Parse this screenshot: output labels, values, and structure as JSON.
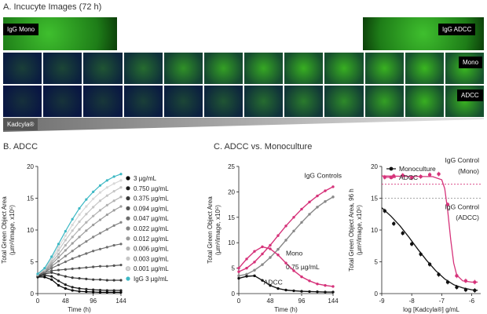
{
  "section_a": {
    "title": "A. Incucyte Images (72 h)",
    "row_labels": {
      "igg_mono": "IgG Mono",
      "igg_adcc": "IgG ADCC",
      "mono": "Mono",
      "adcc": "ADCC"
    },
    "gradient_label": "Kadcyla®",
    "tile_count": 12,
    "mono_intensity": [
      0.15,
      0.2,
      0.3,
      0.45,
      0.7,
      0.8,
      0.85,
      0.9,
      0.9,
      0.92,
      0.95,
      0.95
    ],
    "adcc_intensity": [
      0.05,
      0.07,
      0.1,
      0.15,
      0.2,
      0.3,
      0.45,
      0.55,
      0.65,
      0.8,
      0.9,
      0.92
    ]
  },
  "colors": {
    "teal": "#3db8c4",
    "magenta": "#d6337a",
    "green": "#3fb72e",
    "black": "#111111",
    "gray": "#888888"
  },
  "chart_data": [
    {
      "id": "B",
      "type": "line",
      "title": "B. ADCC",
      "xlabel": "Time (h)",
      "ylabel": "Total Green Object Area",
      "ylabel2": "(µm²/image, x10⁵)",
      "xlim": [
        0,
        144
      ],
      "ylim": [
        0,
        20
      ],
      "xticks": [
        0,
        48,
        96,
        144
      ],
      "yticks": [
        0,
        5,
        10,
        15,
        20
      ],
      "x": [
        0,
        12,
        24,
        36,
        48,
        60,
        72,
        84,
        96,
        108,
        120,
        132,
        144
      ],
      "series": [
        {
          "name": "3 µg/mL",
          "color": "#000000",
          "values": [
            2.6,
            2.6,
            2.2,
            1.3,
            0.8,
            0.5,
            0.35,
            0.3,
            0.25,
            0.2,
            0.2,
            0.2,
            0.2
          ]
        },
        {
          "name": "0.750 µg/mL",
          "color": "#1e1e1e",
          "values": [
            2.7,
            2.9,
            2.7,
            2.0,
            1.4,
            1.0,
            0.8,
            0.7,
            0.6,
            0.55,
            0.5,
            0.5,
            0.5
          ]
        },
        {
          "name": "0.375 µg/mL",
          "color": "#3a3a3a",
          "values": [
            2.8,
            3.1,
            3.3,
            3.0,
            2.7,
            2.5,
            2.4,
            2.3,
            2.2,
            2.2,
            2.1,
            2.1,
            2.1
          ]
        },
        {
          "name": "0.094 µg/mL",
          "color": "#555555",
          "values": [
            2.9,
            3.3,
            3.6,
            3.7,
            3.8,
            3.9,
            4.0,
            4.1,
            4.2,
            4.3,
            4.3,
            4.4,
            4.5
          ]
        },
        {
          "name": "0.047 µg/mL",
          "color": "#6e6e6e",
          "values": [
            3.0,
            3.4,
            4.0,
            4.5,
            5.0,
            5.5,
            5.9,
            6.3,
            6.7,
            7.0,
            7.3,
            7.6,
            7.8
          ]
        },
        {
          "name": "0.022 µg/mL",
          "color": "#858585",
          "values": [
            3.0,
            3.5,
            4.3,
            5.1,
            5.9,
            6.7,
            7.5,
            8.2,
            8.9,
            9.5,
            10.1,
            10.7,
            11.2
          ]
        },
        {
          "name": "0.012 µg/mL",
          "color": "#9c9c9c",
          "values": [
            3.0,
            3.6,
            4.6,
            5.7,
            6.8,
            7.9,
            8.9,
            9.9,
            10.8,
            11.6,
            12.4,
            13.1,
            13.7
          ]
        },
        {
          "name": "0.006 µg/mL",
          "color": "#b2b2b2",
          "values": [
            3.0,
            3.7,
            4.9,
            6.2,
            7.6,
            8.9,
            10.1,
            11.2,
            12.2,
            13.1,
            13.9,
            14.6,
            15.2
          ]
        },
        {
          "name": "0.003 µg/mL",
          "color": "#c6c6c6",
          "values": [
            3.0,
            3.8,
            5.2,
            6.8,
            8.4,
            9.9,
            11.3,
            12.5,
            13.6,
            14.6,
            15.4,
            16.1,
            16.7
          ]
        },
        {
          "name": "0.001 µg/mL",
          "color": "#d8d8d8",
          "values": [
            3.0,
            3.9,
            5.5,
            7.3,
            9.1,
            10.8,
            12.4,
            13.7,
            14.9,
            15.9,
            16.7,
            17.3,
            17.8
          ]
        },
        {
          "name": "IgG 3 µg/mL",
          "color": "#3db8c4",
          "values": [
            3.1,
            4.0,
            5.8,
            7.8,
            9.8,
            11.7,
            13.4,
            14.8,
            16.0,
            17.0,
            17.8,
            18.4,
            18.8
          ]
        }
      ]
    },
    {
      "id": "C1",
      "type": "line",
      "title": "C. ADCC vs. Monoculture",
      "xlabel": "Time (h)",
      "ylabel": "Total Green Object Area",
      "ylabel2": "(µm²/image, x10⁵)",
      "xlim": [
        0,
        144
      ],
      "ylim": [
        0,
        25
      ],
      "xticks": [
        0,
        48,
        96,
        144
      ],
      "yticks": [
        0,
        5,
        10,
        15,
        20,
        25
      ],
      "x": [
        0,
        12,
        24,
        36,
        48,
        60,
        72,
        84,
        96,
        108,
        120,
        132,
        144
      ],
      "series": [
        {
          "name": "IgG Mono",
          "color": "#d6337a",
          "values": [
            4.3,
            5.0,
            6.2,
            7.8,
            9.5,
            11.4,
            13.3,
            15.0,
            16.6,
            18.0,
            19.2,
            20.2,
            21.0
          ]
        },
        {
          "name": "IgG ADCC",
          "color": "#888888",
          "values": [
            3.5,
            3.8,
            4.6,
            5.7,
            7.1,
            8.7,
            10.5,
            12.3,
            14.0,
            15.6,
            17.0,
            18.1,
            19.0
          ]
        },
        {
          "name": "Mono 0.75 µg/mL",
          "color": "#d6337a",
          "values": [
            5.0,
            6.8,
            8.3,
            9.2,
            8.8,
            7.6,
            6.0,
            4.5,
            3.3,
            2.5,
            1.9,
            1.6,
            1.4
          ]
        },
        {
          "name": "ADCC",
          "color": "#111111",
          "values": [
            3.0,
            3.4,
            3.5,
            2.6,
            1.6,
            1.0,
            0.7,
            0.55,
            0.45,
            0.4,
            0.35,
            0.3,
            0.3
          ]
        }
      ],
      "annotations": {
        "igg_controls": "IgG Controls",
        "mono": "Mono",
        "mono_conc": "0.75 µg/mL",
        "adcc": "ADCC"
      }
    },
    {
      "id": "C2",
      "type": "scatter",
      "title": "",
      "xlabel": "log [Kadcyla®] g/mL",
      "ylabel": "Total Green Object Area, 96 h",
      "ylabel2": "(µm²/image, x10⁵)",
      "xlim": [
        -9,
        -5.7
      ],
      "ylim": [
        0,
        20
      ],
      "xticks": [
        -9,
        -8,
        -7,
        -6
      ],
      "yticks": [
        0,
        5,
        10,
        15,
        20
      ],
      "series": [
        {
          "name": "Monoculture",
          "color": "#111111",
          "x": [
            -8.9,
            -8.6,
            -8.3,
            -8.0,
            -7.7,
            -7.4,
            -7.1,
            -6.8,
            -6.5,
            -6.2,
            -5.9
          ],
          "y": [
            13.0,
            11.0,
            9.5,
            7.8,
            6.2,
            4.6,
            3.0,
            1.8,
            1.0,
            0.6,
            0.5
          ],
          "fit": [
            [
              -9.0,
              13.5
            ],
            [
              -8.7,
              12.2
            ],
            [
              -8.4,
              10.7
            ],
            [
              -8.1,
              8.9
            ],
            [
              -7.8,
              7.0
            ],
            [
              -7.5,
              5.2
            ],
            [
              -7.2,
              3.6
            ],
            [
              -6.9,
              2.3
            ],
            [
              -6.6,
              1.4
            ],
            [
              -6.3,
              0.9
            ],
            [
              -6.0,
              0.6
            ],
            [
              -5.8,
              0.5
            ]
          ]
        },
        {
          "name": "ADCC",
          "color": "#d6337a",
          "x": [
            -8.9,
            -8.6,
            -8.3,
            -8.0,
            -7.7,
            -7.4,
            -7.1,
            -6.8,
            -6.5,
            -6.2,
            -5.9
          ],
          "y": [
            18.3,
            18.5,
            18.6,
            18.2,
            18.4,
            18.7,
            18.8,
            14.0,
            2.8,
            2.0,
            1.8
          ],
          "fit": [
            [
              -9.0,
              18.5
            ],
            [
              -7.3,
              18.4
            ],
            [
              -7.0,
              17.9
            ],
            [
              -6.9,
              16.5
            ],
            [
              -6.8,
              13.0
            ],
            [
              -6.7,
              8.5
            ],
            [
              -6.6,
              4.8
            ],
            [
              -6.5,
              2.9
            ],
            [
              -6.3,
              2.0
            ],
            [
              -6.0,
              1.8
            ],
            [
              -5.8,
              1.8
            ]
          ]
        }
      ],
      "reference_lines": [
        {
          "label": "IgG Control",
          "label2": "(Mono)",
          "y": 17.2,
          "color": "#d6337a"
        },
        {
          "label": "IgG Control",
          "label2": "(ADCC)",
          "y": 15.0,
          "color": "#888888"
        }
      ]
    }
  ]
}
